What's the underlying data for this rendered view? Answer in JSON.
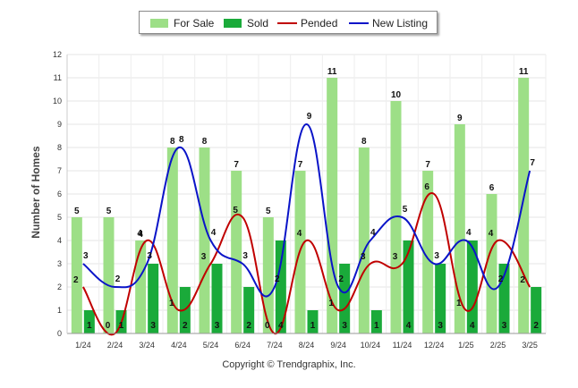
{
  "legend": {
    "for_sale": "For Sale",
    "sold": "Sold",
    "pended": "Pended",
    "new_listing": "New Listing"
  },
  "copyright": "Copyright © Trendgraphix, Inc.",
  "chart_data": {
    "type": "bar",
    "categories": [
      "1/24",
      "2/24",
      "3/24",
      "4/24",
      "5/24",
      "6/24",
      "7/24",
      "8/24",
      "9/24",
      "10/24",
      "11/24",
      "12/24",
      "1/25",
      "2/25",
      "3/25"
    ],
    "ylabel": "Number of Homes",
    "ylim": [
      0,
      12
    ],
    "yticks": [
      0,
      1,
      2,
      3,
      4,
      5,
      6,
      7,
      8,
      9,
      10,
      11,
      12
    ],
    "grid": true,
    "legend_position": "top",
    "series": [
      {
        "name": "For Sale",
        "kind": "bar",
        "color": "#9ddf87",
        "values": [
          5,
          5,
          4,
          8,
          8,
          7,
          5,
          7,
          11,
          8,
          10,
          7,
          9,
          6,
          11
        ]
      },
      {
        "name": "Sold",
        "kind": "bar",
        "color": "#1aaa3a",
        "values": [
          1,
          1,
          3,
          2,
          3,
          2,
          4,
          1,
          3,
          1,
          4,
          3,
          4,
          3,
          2
        ]
      },
      {
        "name": "Pended",
        "kind": "line",
        "color": "#c00000",
        "values": [
          2,
          0,
          4,
          1,
          3,
          5,
          0,
          4,
          1,
          3,
          3,
          6,
          1,
          4,
          2
        ]
      },
      {
        "name": "New Listing",
        "kind": "line",
        "color": "#0a14c8",
        "values": [
          3,
          2,
          3,
          8,
          4,
          3,
          2,
          9,
          2,
          4,
          5,
          3,
          4,
          2,
          7
        ]
      }
    ]
  }
}
